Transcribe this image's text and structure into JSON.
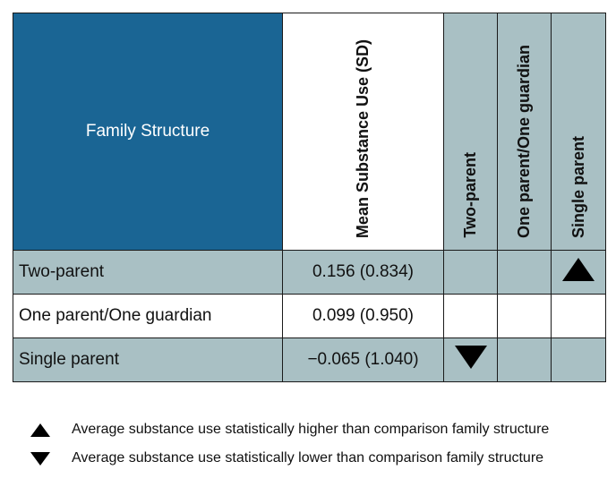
{
  "table": {
    "corner_header": "Family Structure",
    "col_headers": [
      "Mean Substance Use (SD)",
      "Two-parent",
      "One parent/One guardian",
      "Single parent"
    ],
    "rows": [
      {
        "label": "Two-parent",
        "value": "0.156 (0.834)",
        "marks": [
          "",
          "",
          "higher"
        ]
      },
      {
        "label": "One parent/One guardian",
        "value": "0.099 (0.950)",
        "marks": [
          "",
          "",
          ""
        ]
      },
      {
        "label": "Single parent",
        "value": "−0.065 (1.040)",
        "marks": [
          "lower",
          "",
          ""
        ]
      }
    ]
  },
  "legend": {
    "higher": {
      "icon": "triangle-up-icon",
      "text": "Average substance use statistically higher than comparison family structure"
    },
    "lower": {
      "icon": "triangle-down-icon",
      "text": "Average substance use statistically lower than comparison family structure"
    }
  },
  "colors": {
    "header_blue": "#1a6594",
    "row_teal": "#a9c0c4"
  }
}
